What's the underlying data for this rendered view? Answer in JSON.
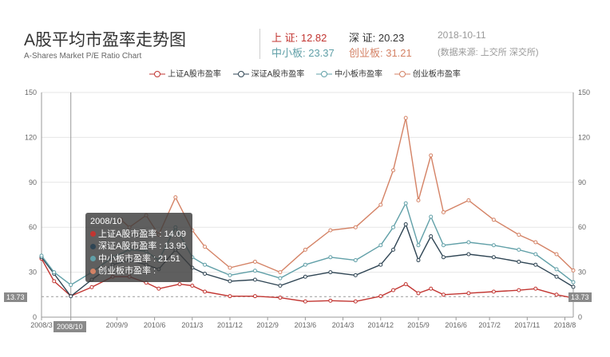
{
  "header": {
    "title": "A股平均市盈率走势图",
    "subtitle": "A-Shares Market P/E Ratio Chart",
    "stats": {
      "sh_label": "上 证: 12.82",
      "sz_label": "深 证: 20.23",
      "date": "2018-10-11",
      "sme_label": "中小板: 23.37",
      "gem_label": "创业板: 31.21",
      "source": "(数据来源: 上交所 深交所)"
    },
    "colors": {
      "sh": "#c23531",
      "sz": "#2f4554",
      "sme": "#61a0a8",
      "gem": "#d48265",
      "date": "#999999",
      "source": "#999999"
    }
  },
  "tooltip": {
    "title": "2008/10",
    "rows": [
      {
        "label": "上证A股市盈率 : 14.09",
        "color": "#c23531"
      },
      {
        "label": "深证A股市盈率 : 13.95",
        "color": "#2f4554"
      },
      {
        "label": "中小板市盈率 : 21.51",
        "color": "#61a0a8"
      },
      {
        "label": "创业板市盈率 :",
        "color": "#d48265"
      }
    ]
  },
  "cursor": {
    "value_label": "13.73",
    "date_label": "2008/10"
  },
  "chart_data": {
    "type": "line",
    "legend": [
      "上证A股市盈率",
      "深证A股市盈率",
      "中小板市盈率",
      "创业板市盈率"
    ],
    "legend_position": "top",
    "ylim": [
      0,
      150
    ],
    "yticks": [
      0,
      30,
      60,
      90,
      120,
      150
    ],
    "x_tick_labels": [
      "2008/3",
      "2008/10",
      "2009/9",
      "2010/6",
      "2011/3",
      "2011/12",
      "2012/9",
      "2013/6",
      "2014/3",
      "2014/12",
      "2015/9",
      "2016/6",
      "2017/2",
      "2017/11",
      "2018/8"
    ],
    "grid": "horizontal",
    "series": [
      {
        "name": "上证A股市盈率",
        "color": "#c23531",
        "data": [
          [
            "2008/3",
            39
          ],
          [
            "2008/6",
            24
          ],
          [
            "2008/10",
            14.09
          ],
          [
            "2009/3",
            20
          ],
          [
            "2009/8",
            27
          ],
          [
            "2009/12",
            27
          ],
          [
            "2010/4",
            23
          ],
          [
            "2010/7",
            19
          ],
          [
            "2010/12",
            22
          ],
          [
            "2011/3",
            21
          ],
          [
            "2011/6",
            17
          ],
          [
            "2011/12",
            14
          ],
          [
            "2012/6",
            14
          ],
          [
            "2012/12",
            13
          ],
          [
            "2013/6",
            10.5
          ],
          [
            "2013/12",
            11
          ],
          [
            "2014/6",
            10.5
          ],
          [
            "2014/12",
            14
          ],
          [
            "2015/3",
            18
          ],
          [
            "2015/6",
            22
          ],
          [
            "2015/9",
            16
          ],
          [
            "2015/12",
            19
          ],
          [
            "2016/3",
            15
          ],
          [
            "2016/9",
            16
          ],
          [
            "2017/3",
            17
          ],
          [
            "2017/9",
            18
          ],
          [
            "2018/1",
            19
          ],
          [
            "2018/6",
            15
          ],
          [
            "2018/10",
            12.82
          ]
        ]
      },
      {
        "name": "深证A股市盈率",
        "color": "#2f4554",
        "data": [
          [
            "2008/3",
            40
          ],
          [
            "2008/6",
            29
          ],
          [
            "2008/10",
            13.95
          ],
          [
            "2009/3",
            25
          ],
          [
            "2009/8",
            35
          ],
          [
            "2009/12",
            38
          ],
          [
            "2010/4",
            35
          ],
          [
            "2010/7",
            32
          ],
          [
            "2010/11",
            45
          ],
          [
            "2011/3",
            33
          ],
          [
            "2011/6",
            29
          ],
          [
            "2011/12",
            24
          ],
          [
            "2012/6",
            25
          ],
          [
            "2012/12",
            21
          ],
          [
            "2013/6",
            27
          ],
          [
            "2013/12",
            30
          ],
          [
            "2014/6",
            28
          ],
          [
            "2014/12",
            35
          ],
          [
            "2015/3",
            45
          ],
          [
            "2015/6",
            62
          ],
          [
            "2015/9",
            38
          ],
          [
            "2015/12",
            54
          ],
          [
            "2016/3",
            40
          ],
          [
            "2016/9",
            42
          ],
          [
            "2017/3",
            40
          ],
          [
            "2017/9",
            37
          ],
          [
            "2018/1",
            35
          ],
          [
            "2018/6",
            27
          ],
          [
            "2018/10",
            20.23
          ]
        ]
      },
      {
        "name": "中小板市盈率",
        "color": "#61a0a8",
        "data": [
          [
            "2008/3",
            41
          ],
          [
            "2008/6",
            30
          ],
          [
            "2008/10",
            21.51
          ],
          [
            "2009/3",
            30
          ],
          [
            "2009/8",
            40
          ],
          [
            "2009/12",
            45
          ],
          [
            "2010/4",
            44
          ],
          [
            "2010/7",
            38
          ],
          [
            "2010/11",
            60
          ],
          [
            "2011/3",
            40
          ],
          [
            "2011/6",
            35
          ],
          [
            "2011/12",
            28
          ],
          [
            "2012/6",
            31
          ],
          [
            "2012/12",
            26
          ],
          [
            "2013/6",
            35
          ],
          [
            "2013/12",
            40
          ],
          [
            "2014/6",
            38
          ],
          [
            "2014/12",
            48
          ],
          [
            "2015/3",
            60
          ],
          [
            "2015/6",
            76
          ],
          [
            "2015/9",
            48
          ],
          [
            "2015/12",
            67
          ],
          [
            "2016/3",
            48
          ],
          [
            "2016/9",
            50
          ],
          [
            "2017/3",
            48
          ],
          [
            "2017/9",
            45
          ],
          [
            "2018/1",
            42
          ],
          [
            "2018/6",
            32
          ],
          [
            "2018/10",
            23.37
          ]
        ]
      },
      {
        "name": "创业板市盈率",
        "color": "#d48265",
        "data": [
          [
            "2009/10",
            65
          ],
          [
            "2009/12",
            60
          ],
          [
            "2010/4",
            68
          ],
          [
            "2010/7",
            55
          ],
          [
            "2010/11",
            80
          ],
          [
            "2011/3",
            58
          ],
          [
            "2011/6",
            47
          ],
          [
            "2011/12",
            33
          ],
          [
            "2012/6",
            37
          ],
          [
            "2012/12",
            30
          ],
          [
            "2013/6",
            45
          ],
          [
            "2013/12",
            58
          ],
          [
            "2014/6",
            60
          ],
          [
            "2014/12",
            75
          ],
          [
            "2015/3",
            98
          ],
          [
            "2015/6",
            133
          ],
          [
            "2015/9",
            78
          ],
          [
            "2015/12",
            108
          ],
          [
            "2016/3",
            70
          ],
          [
            "2016/9",
            78
          ],
          [
            "2017/3",
            65
          ],
          [
            "2017/9",
            55
          ],
          [
            "2018/1",
            50
          ],
          [
            "2018/6",
            42
          ],
          [
            "2018/10",
            31.21
          ]
        ]
      }
    ]
  }
}
